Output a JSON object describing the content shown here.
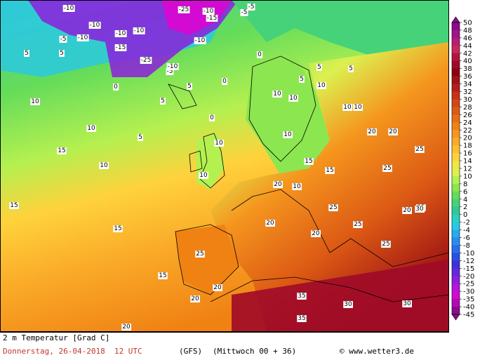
{
  "title": "2 m Temperatur [Grad C]",
  "footer": {
    "date": "Donnerstag, 26-04-2018  12 UTC",
    "model": "(GFS)",
    "run": "(Mittwoch 00 + 36)",
    "credit": "© www.wetter3.de"
  },
  "colorbar": {
    "ticks": [
      50,
      48,
      46,
      44,
      42,
      40,
      38,
      36,
      34,
      32,
      30,
      28,
      26,
      24,
      22,
      20,
      18,
      16,
      14,
      12,
      10,
      8,
      6,
      4,
      2,
      0,
      -2,
      -4,
      -6,
      -8,
      -10,
      -12,
      -15,
      -20,
      -25,
      -30,
      -35,
      -40,
      -45
    ],
    "colors": [
      "#8c0a8c",
      "#a0148c",
      "#b41e78",
      "#c8285a",
      "#b4143c",
      "#a00a28",
      "#8c0014",
      "#a01414",
      "#b41e1e",
      "#c83214",
      "#d24614",
      "#dc5a14",
      "#e66e14",
      "#f08214",
      "#f5961e",
      "#faaa28",
      "#ffbe32",
      "#ffd23c",
      "#f0e646",
      "#dcf050",
      "#b4f050",
      "#8ce650",
      "#64dc5a",
      "#46d278",
      "#32c896",
      "#28d2be",
      "#28c8e6",
      "#28aaf0",
      "#288cf0",
      "#286ef0",
      "#2850e6",
      "#3c32dc",
      "#6428dc",
      "#8c1edc",
      "#b414dc",
      "#d20ad2",
      "#b40ab4",
      "#8c0a8c"
    ]
  },
  "map_labels": [
    "-10",
    "-10",
    "-25",
    "-10",
    "-15",
    "-5",
    "-10",
    "-10",
    "-15",
    "-5",
    "-10",
    "-5",
    "-10",
    "-25",
    "-10",
    "-5",
    "0",
    "5",
    "5",
    "0",
    "0",
    "10",
    "5",
    "10",
    "10",
    "5",
    "5",
    "10",
    "10",
    "5",
    "10",
    "10",
    "15",
    "10",
    "10",
    "15",
    "20",
    "20",
    "20",
    "25",
    "25",
    "15",
    "15",
    "20",
    "20",
    "25",
    "25",
    "25",
    "20",
    "25",
    "30",
    "30",
    "35",
    "35",
    "30",
    "25",
    "20",
    "20",
    "20",
    "15",
    "15",
    "10",
    "5",
    "0",
    "10",
    "10",
    "5"
  ]
}
